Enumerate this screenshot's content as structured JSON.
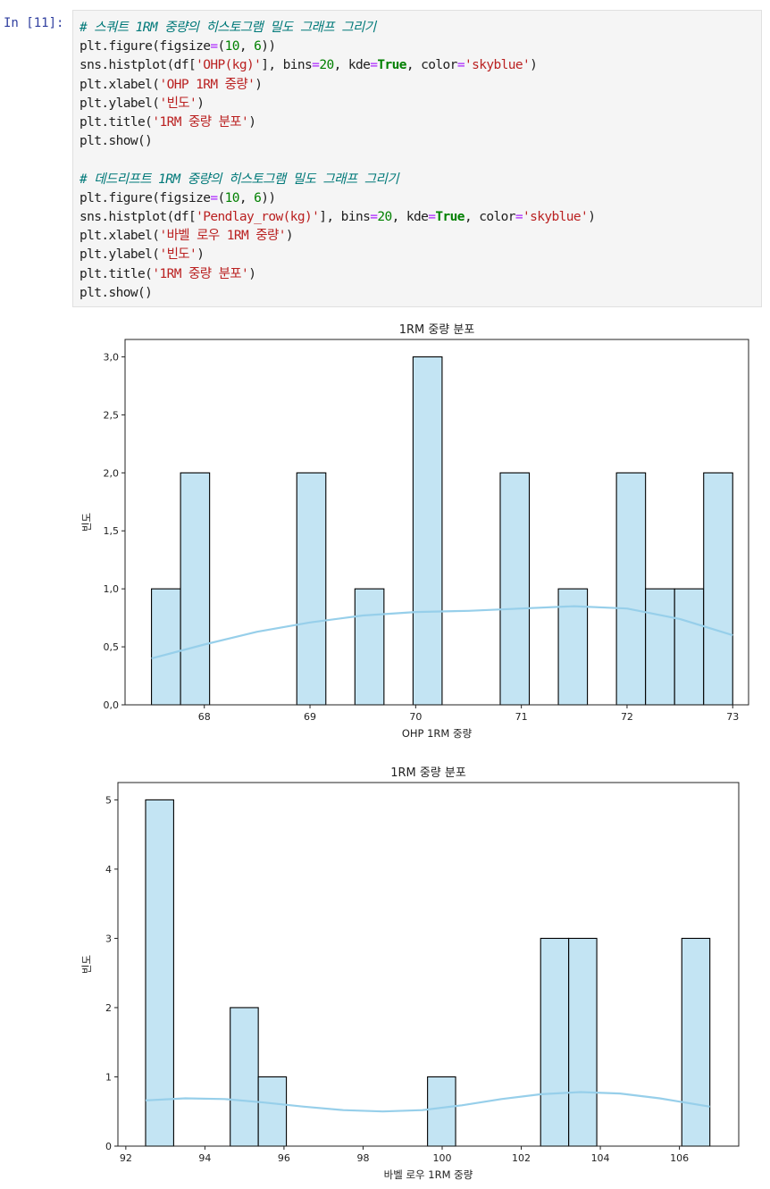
{
  "cell": {
    "prompt": "In [11]:",
    "lines": [
      [
        [
          "cm",
          "# 스쿼트 1RM 중량의 히스토그램 밀도 그래프 그리기"
        ]
      ],
      [
        [
          "t",
          "plt.figure(figsize"
        ],
        [
          "op",
          "="
        ],
        [
          "t",
          "("
        ],
        [
          "nm",
          "10"
        ],
        [
          "t",
          ", "
        ],
        [
          "nm",
          "6"
        ],
        [
          "t",
          "))"
        ]
      ],
      [
        [
          "t",
          "sns.histplot(df["
        ],
        [
          "st",
          "'OHP(kg)'"
        ],
        [
          "t",
          "], bins"
        ],
        [
          "op",
          "="
        ],
        [
          "nm",
          "20"
        ],
        [
          "t",
          ", kde"
        ],
        [
          "op",
          "="
        ],
        [
          "kw",
          "True"
        ],
        [
          "t",
          ", color"
        ],
        [
          "op",
          "="
        ],
        [
          "st",
          "'skyblue'"
        ],
        [
          "t",
          ")"
        ]
      ],
      [
        [
          "t",
          "plt.xlabel("
        ],
        [
          "st",
          "'OHP 1RM 중량'"
        ],
        [
          "t",
          ")"
        ]
      ],
      [
        [
          "t",
          "plt.ylabel("
        ],
        [
          "st",
          "'빈도'"
        ],
        [
          "t",
          ")"
        ]
      ],
      [
        [
          "t",
          "plt.title("
        ],
        [
          "st",
          "'1RM 중량 분포'"
        ],
        [
          "t",
          ")"
        ]
      ],
      [
        [
          "t",
          "plt.show()"
        ]
      ],
      [],
      [
        [
          "cm",
          "# 데드리프트 1RM 중량의 히스토그램 밀도 그래프 그리기"
        ]
      ],
      [
        [
          "t",
          "plt.figure(figsize"
        ],
        [
          "op",
          "="
        ],
        [
          "t",
          "("
        ],
        [
          "nm",
          "10"
        ],
        [
          "t",
          ", "
        ],
        [
          "nm",
          "6"
        ],
        [
          "t",
          "))"
        ]
      ],
      [
        [
          "t",
          "sns.histplot(df["
        ],
        [
          "st",
          "'Pendlay_row(kg)'"
        ],
        [
          "t",
          "], bins"
        ],
        [
          "op",
          "="
        ],
        [
          "nm",
          "20"
        ],
        [
          "t",
          ", kde"
        ],
        [
          "op",
          "="
        ],
        [
          "kw",
          "True"
        ],
        [
          "t",
          ", color"
        ],
        [
          "op",
          "="
        ],
        [
          "st",
          "'skyblue'"
        ],
        [
          "t",
          ")"
        ]
      ],
      [
        [
          "t",
          "plt.xlabel("
        ],
        [
          "st",
          "'바벨 로우 1RM 중량'"
        ],
        [
          "t",
          ")"
        ]
      ],
      [
        [
          "t",
          "plt.ylabel("
        ],
        [
          "st",
          "'빈도'"
        ],
        [
          "t",
          ")"
        ]
      ],
      [
        [
          "t",
          "plt.title("
        ],
        [
          "st",
          "'1RM 중량 분포'"
        ],
        [
          "t",
          ")"
        ]
      ],
      [
        [
          "t",
          "plt.show()"
        ]
      ]
    ]
  },
  "colors": {
    "bar_fill": "#c3e4f3",
    "bar_edge": "#000000",
    "kde": "#97cfea"
  },
  "chart_data": [
    {
      "type": "bar",
      "title": "1RM 중량 분포",
      "xlabel": "OHP 1RM 중량",
      "ylabel": "빈도",
      "xlim": [
        67.25,
        73.15
      ],
      "ylim": [
        0,
        3.15
      ],
      "xticks": [
        68,
        69,
        70,
        71,
        72,
        73
      ],
      "xtick_labels": [
        "68",
        "69",
        "70",
        "71",
        "72",
        "73"
      ],
      "yticks": [
        0,
        0.5,
        1,
        1.5,
        2,
        2.5,
        3
      ],
      "ytick_labels": [
        "0,0",
        "0,5",
        "1,0",
        "1,5",
        "2,0",
        "2,5",
        "3,0"
      ],
      "bins": [
        {
          "x0": 67.5,
          "x1": 67.775,
          "count": 1
        },
        {
          "x0": 67.775,
          "x1": 68.05,
          "count": 2
        },
        {
          "x0": 68.875,
          "x1": 69.15,
          "count": 2
        },
        {
          "x0": 69.425,
          "x1": 69.7,
          "count": 1
        },
        {
          "x0": 69.975,
          "x1": 70.25,
          "count": 3
        },
        {
          "x0": 70.8,
          "x1": 71.075,
          "count": 2
        },
        {
          "x0": 71.35,
          "x1": 71.625,
          "count": 1
        },
        {
          "x0": 71.9,
          "x1": 72.175,
          "count": 2
        },
        {
          "x0": 72.175,
          "x1": 72.45,
          "count": 1
        },
        {
          "x0": 72.45,
          "x1": 72.725,
          "count": 1
        },
        {
          "x0": 72.725,
          "x1": 73.0,
          "count": 2
        }
      ],
      "kde": {
        "x": [
          67.5,
          68.0,
          68.5,
          69.0,
          69.5,
          70.0,
          70.5,
          71.0,
          71.5,
          72.0,
          72.5,
          73.0
        ],
        "y": [
          0.4,
          0.52,
          0.63,
          0.71,
          0.77,
          0.8,
          0.81,
          0.83,
          0.85,
          0.83,
          0.74,
          0.6
        ]
      }
    },
    {
      "type": "bar",
      "title": "1RM 중량 분포",
      "xlabel": "바벨 로우 1RM 중량",
      "ylabel": "빈도",
      "xlim": [
        91.8,
        107.5
      ],
      "ylim": [
        0,
        5.25
      ],
      "xticks": [
        92,
        94,
        96,
        98,
        100,
        102,
        104,
        106
      ],
      "xtick_labels": [
        "92",
        "94",
        "96",
        "98",
        "100",
        "102",
        "104",
        "106"
      ],
      "yticks": [
        0,
        1,
        2,
        3,
        4,
        5
      ],
      "ytick_labels": [
        "0",
        "1",
        "2",
        "3",
        "4",
        "5"
      ],
      "bins": [
        {
          "x0": 92.5,
          "x1": 93.21,
          "count": 5
        },
        {
          "x0": 94.64,
          "x1": 95.35,
          "count": 2
        },
        {
          "x0": 95.35,
          "x1": 96.06,
          "count": 1
        },
        {
          "x0": 99.63,
          "x1": 100.34,
          "count": 1
        },
        {
          "x0": 102.49,
          "x1": 103.2,
          "count": 3
        },
        {
          "x0": 103.2,
          "x1": 103.91,
          "count": 3
        },
        {
          "x0": 106.06,
          "x1": 106.77,
          "count": 3
        }
      ],
      "kde": {
        "x": [
          92.5,
          93.5,
          94.5,
          95.5,
          96.5,
          97.5,
          98.5,
          99.5,
          100.5,
          101.5,
          102.5,
          103.5,
          104.5,
          105.5,
          106.77
        ],
        "y": [
          0.66,
          0.69,
          0.68,
          0.63,
          0.57,
          0.52,
          0.5,
          0.52,
          0.59,
          0.68,
          0.75,
          0.78,
          0.76,
          0.69,
          0.57
        ]
      }
    }
  ]
}
